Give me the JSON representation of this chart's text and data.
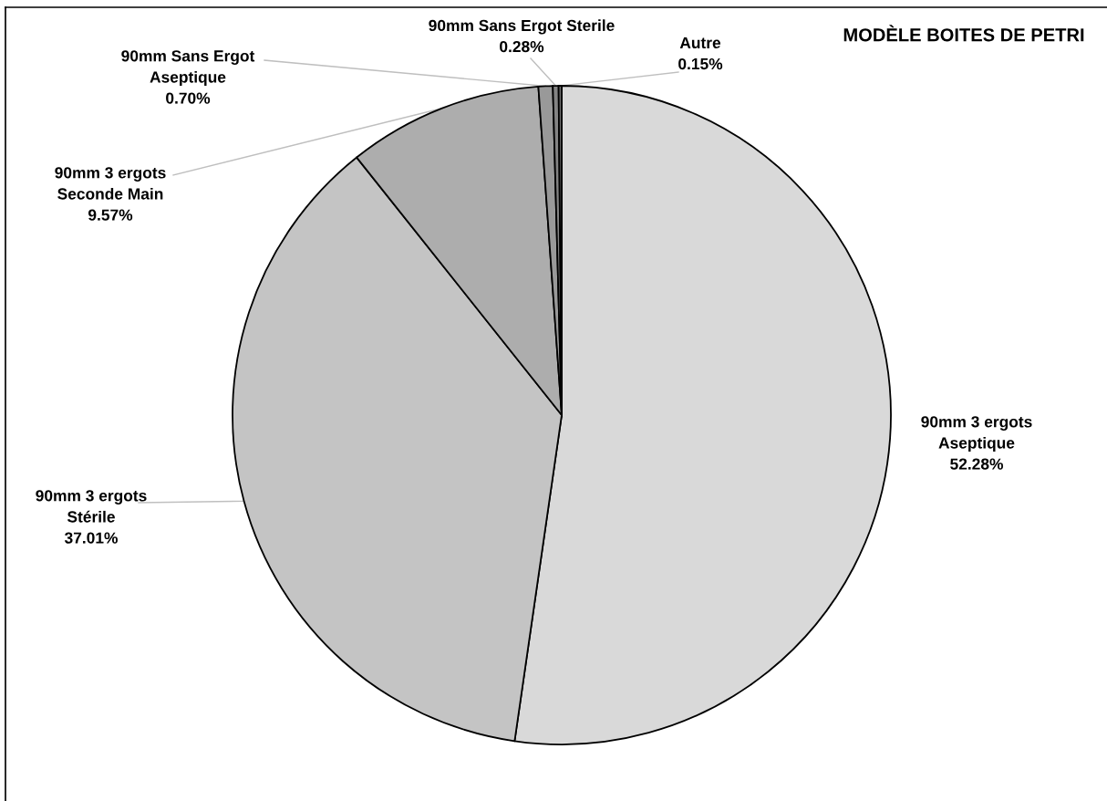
{
  "chart_data": {
    "type": "pie",
    "title": "MODÈLE BOITES DE PETRI",
    "categories": [
      "90mm 3 ergots Aseptique",
      "90mm 3 ergots Stérile",
      "90mm 3 ergots Seconde Main",
      "90mm Sans Ergot Aseptique",
      "90mm Sans Ergot Sterile",
      "Autre"
    ],
    "values": [
      52.28,
      37.01,
      9.57,
      0.7,
      0.28,
      0.15
    ],
    "value_labels": [
      "52.28%",
      "37.01%",
      "9.57%",
      "0.70%",
      "0.28%",
      "0.15%"
    ],
    "colors": [
      "#d9d9d9",
      "#c4c4c4",
      "#adadad",
      "#999999",
      "#838383",
      "#6e6e6e"
    ]
  }
}
